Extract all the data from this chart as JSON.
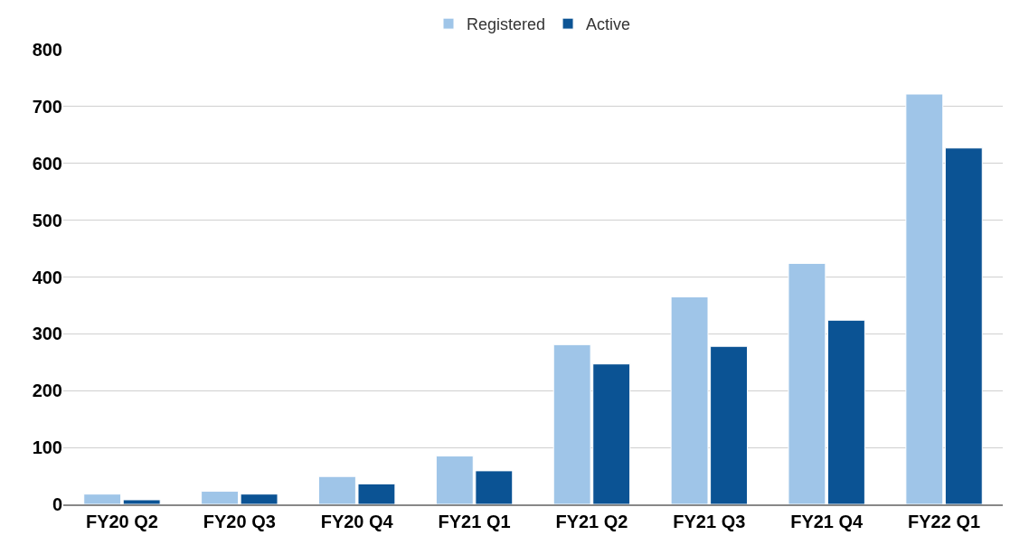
{
  "chart_data": {
    "type": "bar",
    "categories": [
      "FY20 Q2",
      "FY20 Q3",
      "FY20 Q4",
      "FY21 Q1",
      "FY21 Q2",
      "FY21 Q3",
      "FY21 Q4",
      "FY22 Q1"
    ],
    "series": [
      {
        "name": "Registered",
        "color": "#9fc5e8",
        "values": [
          18,
          23,
          49,
          85,
          281,
          365,
          424,
          722
        ]
      },
      {
        "name": "Active",
        "color": "#0b5394",
        "values": [
          8,
          18,
          36,
          59,
          247,
          278,
          324,
          627
        ]
      }
    ],
    "ylim": [
      0,
      800
    ],
    "yticks": [
      0,
      100,
      200,
      300,
      400,
      500,
      600,
      700,
      800
    ],
    "grid": "y",
    "legend": "top"
  }
}
